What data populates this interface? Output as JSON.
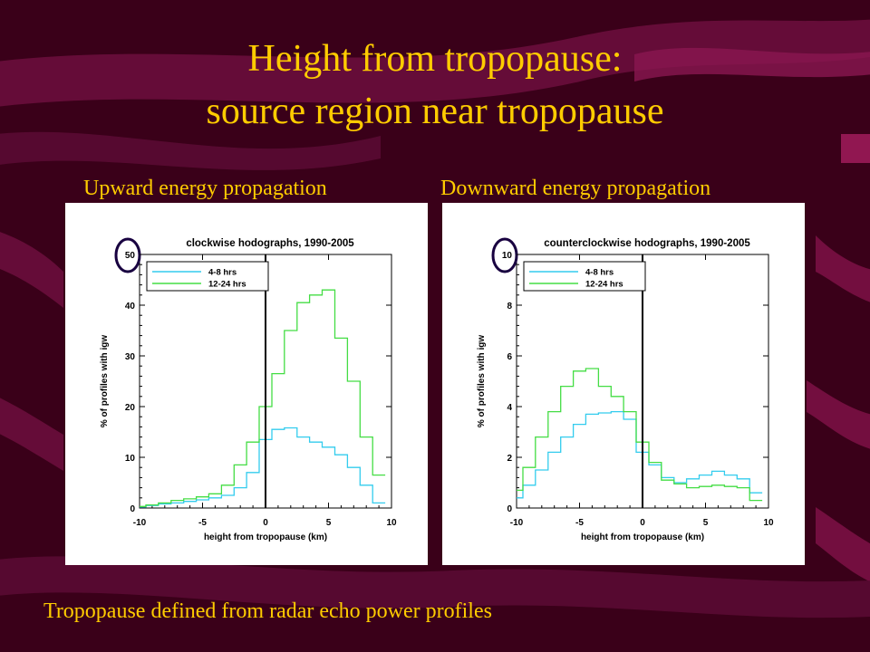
{
  "slide": {
    "title_line1": "Height from tropopause:",
    "title_line2": "source region near tropopause",
    "left_subtitle": "Upward energy propagation",
    "right_subtitle": "Downward energy propagation",
    "footer": "Tropopause defined from radar echo power profiles"
  },
  "colors": {
    "background": "#3a0019",
    "accent": "#ffcc00",
    "swoosh": "#7a1044",
    "series_short": "#33ccee",
    "series_long": "#44dd44",
    "circle": "#180040"
  },
  "chart_data": [
    {
      "type": "line",
      "step": true,
      "title": "clockwise hodographs, 1990-2005",
      "xlabel": "height from tropopause (km)",
      "ylabel": "% of profiles with igw",
      "xlim": [
        -10,
        10
      ],
      "ylim": [
        0,
        50
      ],
      "xticks": [
        -10,
        -5,
        0,
        5,
        10
      ],
      "yticks": [
        0,
        10,
        20,
        30,
        40,
        50
      ],
      "highlight_tick": "50",
      "vline_x": 0,
      "legend_position": "top-left",
      "x_edges": [
        -10.5,
        -9.5,
        -8.5,
        -7.5,
        -6.5,
        -5.5,
        -4.5,
        -3.5,
        -2.5,
        -1.5,
        -0.5,
        0.5,
        1.5,
        2.5,
        3.5,
        4.5,
        5.5,
        6.5,
        7.5,
        8.5,
        9.5
      ],
      "series": [
        {
          "name": "4-8 hrs",
          "color": "#33ccee",
          "values": [
            0.2,
            0.5,
            0.8,
            1.0,
            1.3,
            1.6,
            2.0,
            2.5,
            4.0,
            7.0,
            13.5,
            15.5,
            15.8,
            14.0,
            13.0,
            12.0,
            10.5,
            8.0,
            4.5,
            1.0
          ]
        },
        {
          "name": "12-24 hrs",
          "color": "#44dd44",
          "values": [
            0.3,
            0.6,
            1.0,
            1.5,
            1.8,
            2.2,
            2.8,
            4.5,
            8.5,
            13.0,
            20.0,
            26.5,
            35.0,
            40.5,
            42.0,
            43.0,
            33.5,
            25.0,
            14.0,
            6.5
          ]
        }
      ]
    },
    {
      "type": "line",
      "step": true,
      "title": "counterclockwise hodographs, 1990-2005",
      "xlabel": "height from tropopause (km)",
      "ylabel": "% of profiles with igw",
      "xlim": [
        -10,
        10
      ],
      "ylim": [
        0,
        10
      ],
      "xticks": [
        -10,
        -5,
        0,
        5,
        10
      ],
      "yticks": [
        0,
        2,
        4,
        6,
        8,
        10
      ],
      "highlight_tick": "10",
      "vline_x": 0,
      "legend_position": "top-left",
      "x_edges": [
        -10.5,
        -9.5,
        -8.5,
        -7.5,
        -6.5,
        -5.5,
        -4.5,
        -3.5,
        -2.5,
        -1.5,
        -0.5,
        0.5,
        1.5,
        2.5,
        3.5,
        4.5,
        5.5,
        6.5,
        7.5,
        8.5,
        9.5
      ],
      "series": [
        {
          "name": "4-8 hrs",
          "color": "#33ccee",
          "values": [
            0.4,
            0.9,
            1.5,
            2.2,
            2.8,
            3.3,
            3.7,
            3.75,
            3.8,
            3.5,
            2.2,
            1.7,
            1.2,
            1.0,
            1.15,
            1.3,
            1.45,
            1.3,
            1.15,
            0.6
          ]
        },
        {
          "name": "12-24 hrs",
          "color": "#44dd44",
          "values": [
            0.7,
            1.6,
            2.8,
            3.8,
            4.8,
            5.4,
            5.5,
            4.8,
            4.4,
            3.8,
            2.6,
            1.8,
            1.1,
            0.95,
            0.8,
            0.85,
            0.9,
            0.85,
            0.8,
            0.3
          ]
        }
      ]
    }
  ]
}
